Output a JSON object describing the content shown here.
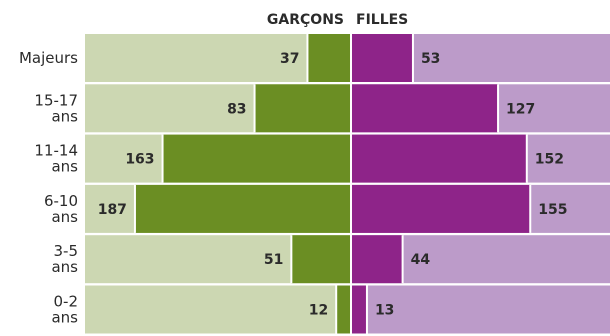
{
  "chart_data": {
    "type": "bar",
    "orientation": "horizontal-butterfly",
    "legend": {
      "left_label": "GARÇONS",
      "right_label": "FILLES",
      "placement": "top-center"
    },
    "categories": [
      [
        "Majeurs"
      ],
      [
        "15-17",
        "ans"
      ],
      [
        "11-14",
        "ans"
      ],
      [
        "6-10",
        "ans"
      ],
      [
        "3-5",
        "ans"
      ],
      [
        "0-2",
        "ans"
      ]
    ],
    "series": [
      {
        "name": "GARÇONS",
        "values": [
          37,
          83,
          163,
          187,
          51,
          12
        ]
      },
      {
        "name": "FILLES",
        "values": [
          53,
          127,
          152,
          155,
          44,
          13
        ]
      }
    ],
    "xlim": [
      0,
      200
    ],
    "colors": {
      "boys_bar": "#6b8e23",
      "boys_background": "#ccd7b2",
      "girls_bar": "#8e2489",
      "girls_background": "#bc9bc9",
      "label_text": "#2b2b2b"
    }
  }
}
